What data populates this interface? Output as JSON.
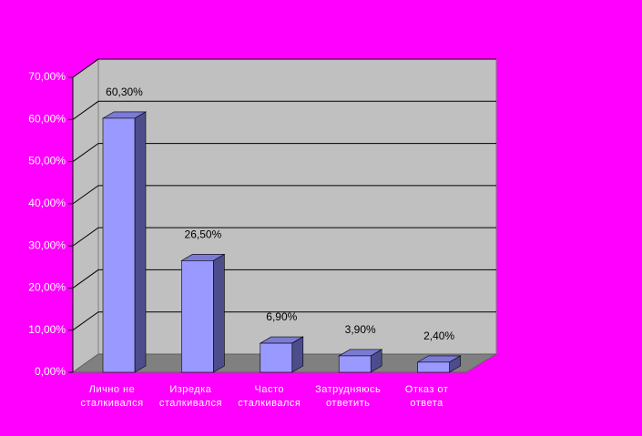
{
  "chart_data": {
    "type": "bar",
    "categories": [
      "Лично не сталкивался",
      "Изредка сталкивался",
      "Часто сталкивался",
      "Затрудняюсь ответить",
      "Отказ от ответа"
    ],
    "values": [
      60.3,
      26.5,
      6.9,
      3.9,
      2.4
    ],
    "value_labels": [
      "60,30%",
      "26,50%",
      "6,90%",
      "3,90%",
      "2,40%"
    ],
    "color": "#9999ff",
    "ylim": [
      0,
      70
    ],
    "yticks": [
      {
        "value": 0,
        "label": "0,00%"
      },
      {
        "value": 10,
        "label": "10,00%"
      },
      {
        "value": 20,
        "label": "20,00%"
      },
      {
        "value": 30,
        "label": "30,00%"
      },
      {
        "value": 40,
        "label": "40,00%"
      },
      {
        "value": 50,
        "label": "50,00%"
      },
      {
        "value": 60,
        "label": "60,00%"
      },
      {
        "value": 70,
        "label": "70,00%"
      }
    ],
    "grid": true
  }
}
